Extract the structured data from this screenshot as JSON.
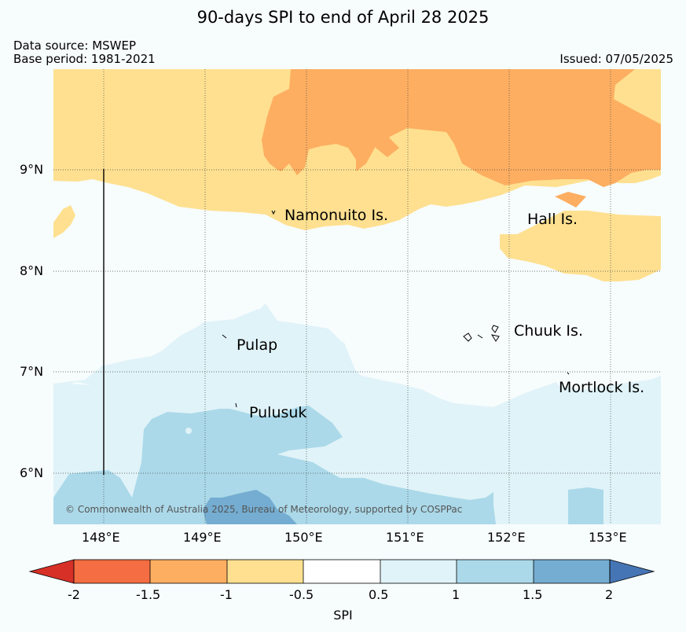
{
  "header": {
    "title": "90-days SPI to end of April 28 2025",
    "data_source": "Data source: MSWEP",
    "base_period": "Base period: 1981-2021",
    "issued": "Issued: 07/05/2025"
  },
  "map": {
    "copyright": "© Commonwealth of Australia 2025, Bureau of Meteorology, supported by COSPPac",
    "lat_labels": [
      "9°N",
      "8°N",
      "7°N",
      "6°N"
    ],
    "lon_labels": [
      "148°E",
      "149°E",
      "150°E",
      "151°E",
      "152°E",
      "153°E"
    ],
    "islands": [
      "Namonuito Is.",
      "Hall Is.",
      "Chuuk Is.",
      "Pulap",
      "Mortlock Is.",
      "Pulusuk"
    ]
  },
  "colorbar": {
    "label": "SPI",
    "ticks": [
      "-2",
      "-1.5",
      "-1",
      "-0.5",
      "0.5",
      "1",
      "1.5",
      "2"
    ],
    "colors": {
      "lt_neg2": "#d73027",
      "neg2_neg1_5": "#f46d43",
      "neg1_5_neg1": "#fdae61",
      "neg1_neg0_5": "#fee090",
      "neutral": "#ffffff",
      "pos0_5_1": "#e0f3f8",
      "pos1_1_5": "#abd9e9",
      "pos1_5_2": "#74add1",
      "gt_2": "#4575b4"
    }
  }
}
